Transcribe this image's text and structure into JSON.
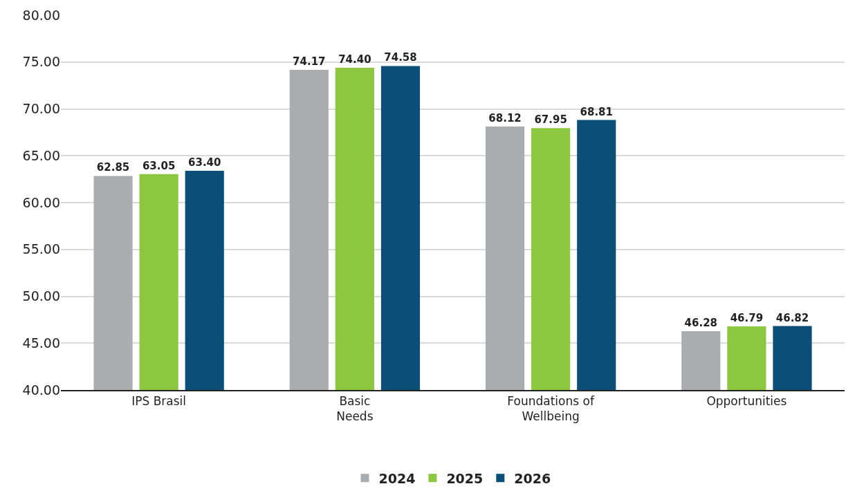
{
  "chart_data": {
    "type": "bar",
    "categories": [
      "IPS Brasil",
      "Basic\nNeeds",
      "Foundations of\nWellbeing",
      "Opportunities"
    ],
    "series": [
      {
        "name": "2024",
        "color": "#a9adb0",
        "values": [
          62.85,
          74.17,
          68.12,
          46.28
        ],
        "value_labels": [
          "62.85",
          "74.17",
          "68.12",
          "46.28"
        ]
      },
      {
        "name": "2025",
        "color": "#8dc63f",
        "values": [
          63.05,
          74.4,
          67.95,
          46.79
        ],
        "value_labels": [
          "63.05",
          "74.40",
          "67.95",
          "46.79"
        ]
      },
      {
        "name": "2026",
        "color": "#0b4f78",
        "values": [
          63.4,
          74.58,
          68.81,
          46.82
        ],
        "value_labels": [
          "63.40",
          "74.58",
          "68.81",
          "46.82"
        ]
      }
    ],
    "ylim": [
      40,
      80
    ],
    "yticks": [
      {
        "value": 40,
        "label": "40.00"
      },
      {
        "value": 45,
        "label": "45.00"
      },
      {
        "value": 50,
        "label": "50.00"
      },
      {
        "value": 55,
        "label": "55.00"
      },
      {
        "value": 60,
        "label": "60.00"
      },
      {
        "value": 65,
        "label": "65.00"
      },
      {
        "value": 70,
        "label": "70.00"
      },
      {
        "value": 75,
        "label": "75.00"
      },
      {
        "value": 80,
        "label": "80.00"
      }
    ],
    "grid": "y",
    "legend": "bottom"
  }
}
